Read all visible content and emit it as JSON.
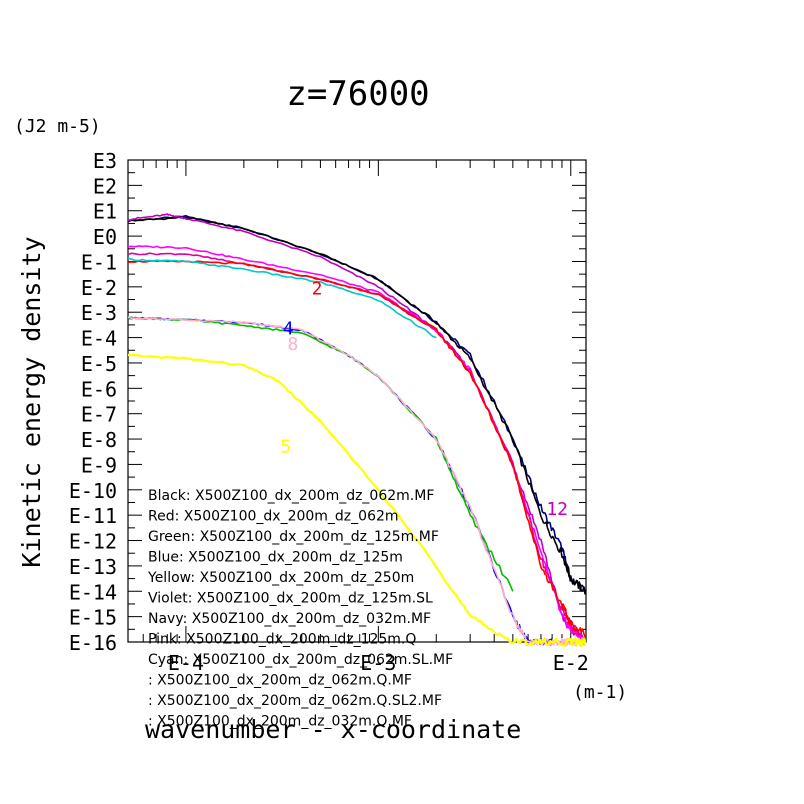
{
  "chart_data": {
    "type": "line",
    "title": "z=76000",
    "ylabel": "Kinetic energy density",
    "yunits": "(J2 m-5)",
    "xlabel": "wavenumber - x-coordinate",
    "xunits": "(m-1)",
    "xscale": "log",
    "yscale": "log",
    "xlim": [
      5e-05,
      0.012
    ],
    "ylim": [
      1e-16,
      1000
    ],
    "grid": false,
    "legend_position": "bottom-left",
    "x_ticks": [
      {
        "value": 0.0001,
        "label": "E-4"
      },
      {
        "value": 0.001,
        "label": "E-3"
      },
      {
        "value": 0.01,
        "label": "E-2"
      }
    ],
    "y_ticks": [
      "E3",
      "E2",
      "E1",
      "E0",
      "E-1",
      "E-2",
      "E-3",
      "E-4",
      "E-5",
      "E-6",
      "E-7",
      "E-8",
      "E-9",
      "E-10",
      "E-11",
      "E-12",
      "E-13",
      "E-14",
      "E-15",
      "E-16"
    ],
    "legend": [
      {
        "name": "Black: X500Z100_dx_200m_dz_062m.MF",
        "color": "#000000"
      },
      {
        "name": "Red: X500Z100_dx_200m_dz_062m",
        "color": "#ff0000"
      },
      {
        "name": "Green: X500Z100_dx_200m_dz_125m.MF",
        "color": "#00bb00"
      },
      {
        "name": "Blue: X500Z100_dx_200m_dz_125m",
        "color": "#0000ff"
      },
      {
        "name": "Yellow: X500Z100_dx_200m_dz_250m",
        "color": "#ffff00"
      },
      {
        "name": "Violet: X500Z100_dx_200m_dz_125m.SL",
        "color": "#c000c0"
      },
      {
        "name": "Navy: X500Z100_dx_200m_dz_032m.MF",
        "color": "#000080"
      },
      {
        "name": "Pink: X500Z100_dx_200m_dz_125m.Q",
        "color": "#ffb0c8"
      },
      {
        "name": "Cyan: X500Z100_dx_200m_dz_062m.SL.MF",
        "color": "#00c8c8"
      },
      {
        "name": ": X500Z100_dx_200m_dz_062m.Q.MF",
        "color": "#ff00ff"
      },
      {
        "name": ": X500Z100_dx_200m_dz_062m.Q.SL2.MF",
        "color": "#e000a0"
      },
      {
        "name": ": X500Z100_dx_200m_dz_032m.Q.MF",
        "color": "#8000ff"
      }
    ],
    "curve_labels": [
      {
        "text": "2",
        "x": 0.00048,
        "y": 0.005,
        "color": "#ff0000"
      },
      {
        "text": "4",
        "x": 0.00034,
        "y": 0.00013,
        "color": "#0000ff"
      },
      {
        "text": "8",
        "x": 0.00036,
        "y": 3.2e-05,
        "color": "#ffb0c8"
      },
      {
        "text": "5",
        "x": 0.00033,
        "y": 3e-09,
        "color": "#ffff00"
      },
      {
        "text": "12",
        "x": 0.0085,
        "y": 1e-11,
        "color": "#c000c0"
      }
    ],
    "series": [
      {
        "name": "Navy",
        "color": "#000080",
        "x": [
          5e-05,
          0.0001,
          0.0002,
          0.0005,
          0.001,
          0.002,
          0.003,
          0.005,
          0.007,
          0.009,
          0.01,
          0.012
        ],
        "y": [
          4,
          6,
          2,
          0.2,
          0.02,
          0.0004,
          2e-05,
          1e-08,
          2e-11,
          5e-13,
          3e-14,
          1e-14
        ]
      },
      {
        "name": "Black",
        "color": "#000000",
        "x": [
          5e-05,
          0.0001,
          0.0002,
          0.0005,
          0.001,
          0.002,
          0.003,
          0.005,
          0.007,
          0.009,
          0.01,
          0.012
        ],
        "y": [
          4,
          5.5,
          2,
          0.2,
          0.02,
          0.0004,
          1.5e-05,
          1e-08,
          1e-11,
          3e-13,
          3e-14,
          1e-14
        ]
      },
      {
        "name": "Violet",
        "color": "#c000c0",
        "x": [
          5e-05,
          8e-05,
          0.0001,
          0.0002,
          0.0005,
          0.001,
          0.002,
          0.003,
          0.005,
          0.007,
          0.009,
          0.01,
          0.012
        ],
        "y": [
          4.5,
          7,
          5,
          1.5,
          0.15,
          0.01,
          0.0002,
          5e-06,
          1e-09,
          1e-12,
          1e-15,
          3e-16,
          1e-16
        ]
      },
      {
        "name": "Q.MF",
        "color": "#ff00ff",
        "x": [
          5e-05,
          0.0001,
          0.0002,
          0.0005,
          0.001,
          0.002,
          0.003,
          0.005,
          0.007,
          0.009,
          0.01,
          0.012
        ],
        "y": [
          0.4,
          0.35,
          0.12,
          0.03,
          0.006,
          0.0002,
          5e-06,
          1e-09,
          3e-13,
          1e-15,
          3e-16,
          1e-16
        ]
      },
      {
        "name": "Q.SL2.MF",
        "color": "#e000a0",
        "x": [
          5e-05,
          0.0001,
          0.0002,
          0.0005,
          0.001,
          0.002,
          0.003,
          0.005,
          0.007,
          0.009,
          0.01,
          0.012
        ],
        "y": [
          0.2,
          0.2,
          0.08,
          0.02,
          0.005,
          0.0002,
          5e-06,
          1e-09,
          2e-13,
          2e-15,
          5e-16,
          1e-16
        ]
      },
      {
        "name": "Red",
        "color": "#ff0000",
        "x": [
          5e-05,
          0.0001,
          0.0002,
          0.0005,
          0.001,
          0.002,
          0.003,
          0.005,
          0.007,
          0.009,
          0.01,
          0.012
        ],
        "y": [
          0.1,
          0.1,
          0.08,
          0.02,
          0.005,
          0.0002,
          4e-06,
          1e-09,
          1e-13,
          3e-15,
          5e-16,
          2e-16
        ]
      },
      {
        "name": "Cyan",
        "color": "#00c8c8",
        "x": [
          5e-05,
          0.0001,
          0.0002,
          0.0005,
          0.001,
          0.002
        ],
        "y": [
          0.12,
          0.1,
          0.05,
          0.015,
          0.003,
          0.0001
        ]
      },
      {
        "name": "Blue",
        "color": "#0000ff",
        "x": [
          5e-05,
          0.0001,
          0.0002,
          0.0004,
          0.0007,
          0.001,
          0.002,
          0.003,
          0.005,
          0.006,
          0.007,
          0.008
        ],
        "y": [
          0.0006,
          0.0005,
          0.0004,
          0.0002,
          2e-05,
          3e-06,
          1e-08,
          2e-11,
          1e-15,
          1e-16,
          1e-16,
          1e-16
        ]
      },
      {
        "name": "Green",
        "color": "#00bb00",
        "x": [
          5e-05,
          0.0001,
          0.0002,
          0.0004,
          0.0007,
          0.001,
          0.002,
          0.003,
          0.005
        ],
        "y": [
          0.0006,
          0.0005,
          0.0003,
          0.00015,
          2e-05,
          3e-06,
          1e-08,
          1e-11,
          1e-14
        ]
      },
      {
        "name": "Pink",
        "color": "#ffb0c8",
        "x": [
          5e-05,
          0.0001,
          0.0002,
          0.0004,
          0.0007,
          0.001,
          0.002,
          0.003,
          0.005,
          0.006,
          0.007,
          0.008,
          0.009,
          0.01,
          0.012
        ],
        "y": [
          0.0006,
          0.0005,
          0.0004,
          0.0002,
          2e-05,
          3e-06,
          1e-08,
          2e-11,
          1e-15,
          1e-16,
          1e-16,
          1e-16,
          1e-16,
          1e-16,
          1e-16
        ]
      },
      {
        "name": "Yellow",
        "color": "#ffff00",
        "x": [
          5e-05,
          0.0001,
          0.0002,
          0.0003,
          0.0005,
          0.001,
          0.002,
          0.003,
          0.005,
          0.007,
          0.01,
          0.012
        ],
        "y": [
          2e-05,
          1.5e-05,
          8e-06,
          2e-06,
          5e-08,
          1e-10,
          1e-13,
          1e-15,
          1e-16,
          1e-16,
          1e-16,
          1e-16
        ]
      }
    ]
  }
}
